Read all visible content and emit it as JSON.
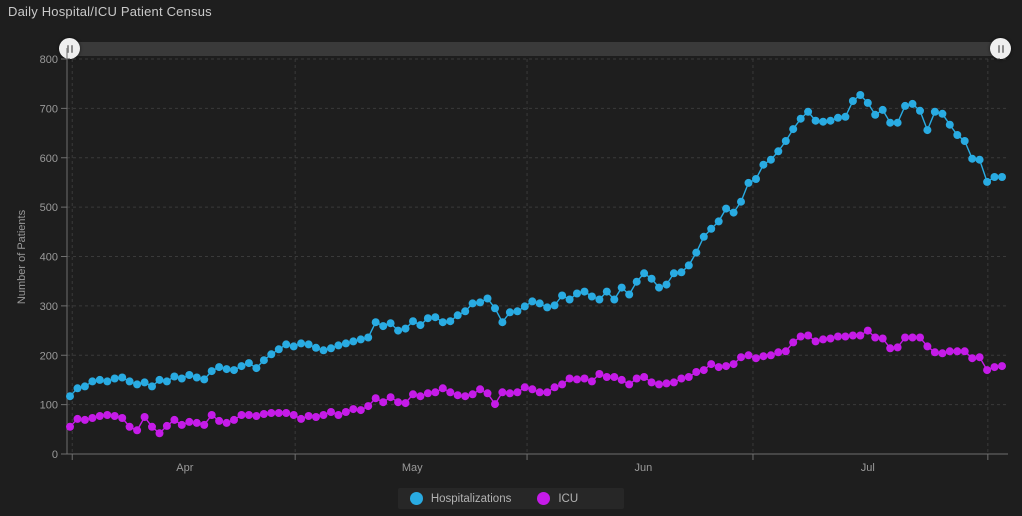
{
  "title": "Daily Hospital/ICU Patient Census",
  "slider": {
    "type": "time-range-slider",
    "handle_left": "range-start",
    "handle_right": "range-end"
  },
  "legend": {
    "items": [
      "Hospitalizations",
      "ICU"
    ]
  },
  "chart_data": {
    "type": "line",
    "title": "Daily Hospital/ICU Patient Census",
    "xlabel": "",
    "ylabel": "Number of Patients",
    "ylim": [
      0,
      800
    ],
    "y_ticks": [
      0,
      100,
      200,
      300,
      400,
      500,
      600,
      700,
      800
    ],
    "grid": true,
    "legend_position": "bottom",
    "x_axis": {
      "unit": "day",
      "month_tick_idx": [
        0.3,
        30.2,
        61.3,
        91.6,
        123.1
      ],
      "month_labels": [
        "Apr",
        "May",
        "Jun",
        "Jul"
      ],
      "month_label_idx": [
        15.4,
        45.9,
        76.9,
        107.0
      ]
    },
    "series": [
      {
        "name": "Hospitalizations",
        "color": "#29abe2",
        "values": [
          117,
          133,
          137,
          147,
          150,
          147,
          153,
          155,
          147,
          141,
          145,
          137,
          150,
          147,
          157,
          153,
          160,
          155,
          151,
          168,
          176,
          172,
          170,
          178,
          184,
          174,
          190,
          202,
          212,
          222,
          218,
          224,
          222,
          215,
          210,
          214,
          220,
          224,
          228,
          232,
          236,
          267,
          259,
          265,
          250,
          254,
          269,
          261,
          275,
          277,
          267,
          269,
          281,
          289,
          305,
          307,
          315,
          295,
          267,
          287,
          289,
          299,
          309,
          305,
          297,
          301,
          321,
          313,
          325,
          329,
          319,
          313,
          329,
          313,
          337,
          323,
          349,
          366,
          355,
          337,
          343,
          366,
          368,
          382,
          408,
          440,
          456,
          471,
          497,
          489,
          511,
          549,
          557,
          586,
          596,
          613,
          634,
          658,
          679,
          693,
          675,
          673,
          675,
          681,
          683,
          715,
          727,
          711,
          687,
          697,
          671,
          671,
          705,
          709,
          695,
          656,
          693,
          689,
          667,
          646,
          634,
          598,
          596,
          551,
          561,
          561
        ]
      },
      {
        "name": "ICU",
        "color": "#c51be8",
        "values": [
          55,
          71,
          69,
          73,
          77,
          79,
          77,
          73,
          55,
          48,
          75,
          55,
          42,
          57,
          69,
          59,
          65,
          63,
          59,
          79,
          67,
          63,
          69,
          79,
          79,
          77,
          81,
          83,
          83,
          83,
          79,
          71,
          77,
          75,
          79,
          85,
          79,
          85,
          91,
          89,
          97,
          113,
          105,
          115,
          105,
          103,
          121,
          117,
          123,
          125,
          133,
          125,
          119,
          117,
          121,
          131,
          123,
          101,
          125,
          123,
          125,
          135,
          131,
          125,
          125,
          135,
          141,
          153,
          151,
          153,
          147,
          162,
          156,
          156,
          150,
          141,
          153,
          156,
          145,
          141,
          143,
          145,
          153,
          156,
          166,
          170,
          182,
          176,
          178,
          182,
          196,
          200,
          194,
          198,
          200,
          206,
          208,
          226,
          238,
          240,
          228,
          232,
          234,
          238,
          238,
          240,
          240,
          250,
          236,
          234,
          214,
          216,
          236,
          236,
          236,
          218,
          206,
          204,
          208,
          208,
          208,
          194,
          196,
          170,
          176,
          178
        ]
      }
    ]
  }
}
